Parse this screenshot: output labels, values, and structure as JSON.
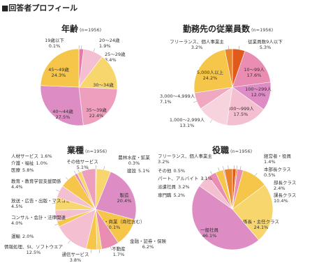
{
  "header": {
    "title": "■回答者プロフィール"
  },
  "chart_data": [
    {
      "type": "pie",
      "title": "年齢",
      "subtitle": "(n=1956)",
      "categories": [
        "19歳以下",
        "20～24歳",
        "25～29歳",
        "30～34歳",
        "35～39歳",
        "40～44歳",
        "45～49歳"
      ],
      "values": [
        0.1,
        1.9,
        8.4,
        15.3,
        22.4,
        27.5,
        24.3
      ],
      "value_labels": [
        "0.1%",
        "1.9%",
        "8.4%",
        "15.3%",
        "22.4%",
        "27.5%",
        "24.3%"
      ],
      "colors": [
        "#e05a9a",
        "#e87aa8",
        "#f4bfd0",
        "#f8d66e",
        "#ee9fbd",
        "#dd8cc4",
        "#f6c64a"
      ]
    },
    {
      "type": "pie",
      "title": "勤務先の従業員数",
      "subtitle": "(n=1956)",
      "categories": [
        "従業員数9人以下",
        "10～99人",
        "100～299人",
        "300～999人",
        "1,000～2,999人",
        "3,000～4,999人",
        "5,000人以上",
        "フリーランス、個人事業主"
      ],
      "values": [
        5.3,
        17.6,
        12.0,
        17.5,
        13.1,
        7.1,
        24.2,
        3.2
      ],
      "value_labels": [
        "5.3%",
        "17.6%",
        "12.0%",
        "17.5%",
        "13.1%",
        "7.1%",
        "24.2%",
        "3.2%"
      ],
      "colors": [
        "#e05a1c",
        "#ea8db2",
        "#dd8cc4",
        "#f4bfd0",
        "#f7d3de",
        "#f0a8c0",
        "#f6c64a",
        "#e8842a"
      ]
    },
    {
      "type": "pie",
      "title": "業種",
      "subtitle": "(n=1956)",
      "categories": [
        "農林水産・鉱業",
        "建設",
        "製造",
        "卸売・小売・商業（商社含む）",
        "金融・証券・保険",
        "不動産",
        "通信サービス",
        "情報処理、SI、ソフトウエア",
        "運輸",
        "コンサル・会計・法律関連",
        "放送・広告・出版・マスコミ",
        "教育・教育学習支援関係",
        "医療",
        "介護・福祉",
        "人材サービス",
        "その他サービス"
      ],
      "values": [
        0.3,
        5.1,
        20.4,
        10.1,
        6.2,
        1.7,
        3.8,
        12.5,
        2.0,
        4.0,
        4.5,
        4.4,
        5.8,
        1.0,
        1.6,
        5.1
      ],
      "value_labels": [
        "0.3%",
        "5.1%",
        "20.4%",
        "10.1%",
        "6.2%",
        "1.7%",
        "3.8%",
        "12.5%",
        "2.0%",
        "4.0%",
        "4.5%",
        "4.4%",
        "5.8%",
        "1.0%",
        "1.6%",
        "5.1%"
      ],
      "colors": [
        "#f6c64a",
        "#f8d66e",
        "#dd8cc4",
        "#f6c64a",
        "#ea8db2",
        "#f8d66e",
        "#f6c64a",
        "#f4bfd0",
        "#f6c64a",
        "#f4bfd0",
        "#f8d66e",
        "#f4bfd0",
        "#f6c64a",
        "#ea8db2",
        "#f8d66e",
        "#ee9fbd"
      ]
    },
    {
      "type": "pie",
      "title": "役職",
      "subtitle": "(n=1956)",
      "categories": [
        "経営者・役員",
        "本部長クラス",
        "部長クラス",
        "課長クラス",
        "係長・主任クラス",
        "一般社員",
        "専門職",
        "派遣社員",
        "パート、アルバイト",
        "その他",
        "フリーランス、個人事業主"
      ],
      "values": [
        1.4,
        0.5,
        2.4,
        10.4,
        24.1,
        46.1,
        5.2,
        3.2,
        3.1,
        0.5,
        3.2
      ],
      "value_labels": [
        "1.4%",
        "0.5%",
        "2.4%",
        "10.4%",
        "24.1%",
        "46.1%",
        "5.2%",
        "3.2%",
        "3.1%",
        "0.5%",
        "3.2%"
      ],
      "colors": [
        "#e05a1c",
        "#e8842a",
        "#ea8db2",
        "#f6c64a",
        "#f8d66e",
        "#dd8cc4",
        "#f4bfd0",
        "#ea8db2",
        "#f6c64a",
        "#ee9fbd",
        "#e8842a"
      ]
    }
  ]
}
